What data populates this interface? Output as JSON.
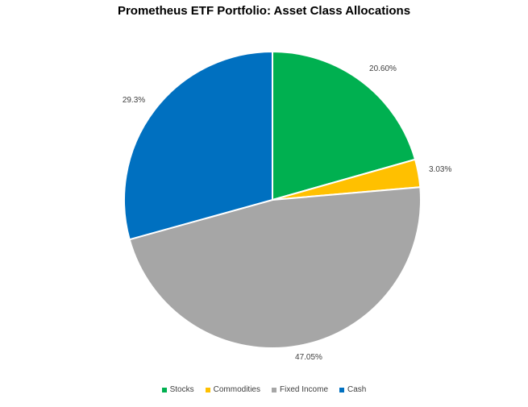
{
  "chart_data": {
    "type": "pie",
    "title": "Prometheus ETF Portfolio: Asset Class Allocations",
    "categories": [
      "Stocks",
      "Commodities",
      "Fixed Income",
      "Cash"
    ],
    "values": [
      20.6,
      3.03,
      47.05,
      29.3
    ],
    "labels": [
      "20.60%",
      "3.03%",
      "47.05%",
      "29.3%"
    ],
    "colors": [
      "#00B050",
      "#FFC000",
      "#A6A6A6",
      "#0070C0"
    ],
    "legend_position": "bottom",
    "start_angle": "12 o'clock, clockwise"
  }
}
